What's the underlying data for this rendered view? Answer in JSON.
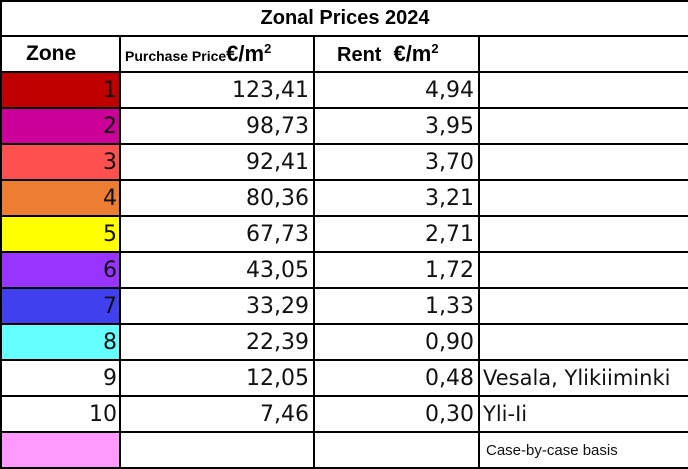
{
  "title": "Zonal Prices 2024",
  "headers": {
    "zone": "Zone",
    "purchase_label": "Purchase Price",
    "purchase_unit": "€/m",
    "purchase_unit_sup": "2",
    "rent_label": "Rent",
    "rent_unit": "€/m",
    "rent_unit_sup": "2"
  },
  "rows": [
    {
      "zone": "1",
      "purchase": "123,41",
      "rent": "4,94",
      "note": "",
      "color": "#c00000"
    },
    {
      "zone": "2",
      "purchase": "98,73",
      "rent": "3,95",
      "note": "",
      "color": "#cc0099"
    },
    {
      "zone": "3",
      "purchase": "92,41",
      "rent": "3,70",
      "note": "",
      "color": "#ff5050"
    },
    {
      "zone": "4",
      "purchase": "80,36",
      "rent": "3,21",
      "note": "",
      "color": "#ed7d31"
    },
    {
      "zone": "5",
      "purchase": "67,73",
      "rent": "2,71",
      "note": "",
      "color": "#ffff00"
    },
    {
      "zone": "6",
      "purchase": "43,05",
      "rent": "1,72",
      "note": "",
      "color": "#9933ff"
    },
    {
      "zone": "7",
      "purchase": "33,29",
      "rent": "1,33",
      "note": "",
      "color": "#4040ee"
    },
    {
      "zone": "8",
      "purchase": "22,39",
      "rent": "0,90",
      "note": "",
      "color": "#66ffff"
    },
    {
      "zone": "9",
      "purchase": "12,05",
      "rent": "0,48",
      "note": "Vesala, Ylikiiminki",
      "color": "#ffffff"
    },
    {
      "zone": "10",
      "purchase": "7,46",
      "rent": "0,30",
      "note": "Yli-Ii",
      "color": "#ffffff"
    },
    {
      "zone": "",
      "purchase": "",
      "rent": "",
      "note": "Case-by-case basis",
      "color": "#ff99ff"
    }
  ]
}
